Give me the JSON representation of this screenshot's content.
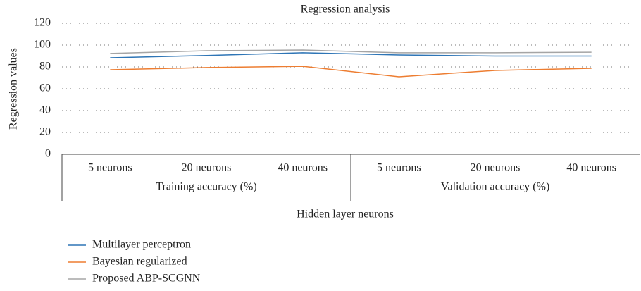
{
  "chart_data": {
    "type": "line",
    "title": "Regression analysis",
    "y_label": "Regression values",
    "x_label": "Hidden layer neurons",
    "groups": [
      {
        "name": "Training accuracy (%)",
        "categories": [
          "5 neurons",
          "20 neurons",
          "40 neurons"
        ]
      },
      {
        "name": "Validation accuracy (%)",
        "categories": [
          "5 neurons",
          "20 neurons",
          "40 neurons"
        ]
      }
    ],
    "series": [
      {
        "name": "Multilayer perceptron",
        "color": "#2e75b6",
        "values": [
          88.4,
          90.5,
          93,
          91,
          90,
          90
        ]
      },
      {
        "name": "Bayesian regularized",
        "color": "#ed7d31",
        "values": [
          77.4,
          79.4,
          80.6,
          71,
          76.8,
          78.7
        ]
      },
      {
        "name": "Proposed ABP-SCGNN",
        "color": "#a5a5a5",
        "values": [
          92.3,
          94.8,
          95.5,
          93,
          93,
          93.5
        ]
      }
    ],
    "ylim": [
      0,
      120
    ],
    "yticks": [
      0,
      20,
      40,
      60,
      80,
      100,
      120
    ],
    "grid": true,
    "legend": "bottom-left"
  }
}
